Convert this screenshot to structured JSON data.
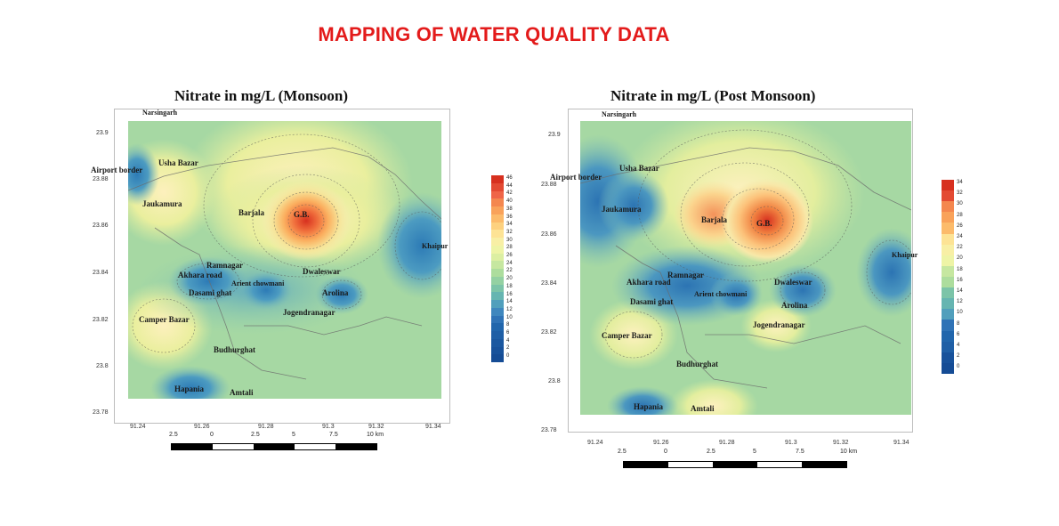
{
  "page": {
    "title": "MAPPING OF WATER QUALITY DATA"
  },
  "maps": [
    {
      "title": "Nitrate in mg/L (Monsoon)",
      "top_label": "Narsingarh",
      "y_ticks": [
        "23.9",
        "23.88",
        "23.86",
        "23.84",
        "23.82",
        "23.8",
        "23.78"
      ],
      "x_ticks": [
        "91.24",
        "91.26",
        "91.28",
        "91.3",
        "91.32",
        "91.34"
      ],
      "legend_ticks": [
        "46",
        "44",
        "42",
        "40",
        "38",
        "36",
        "34",
        "32",
        "30",
        "28",
        "26",
        "24",
        "22",
        "20",
        "18",
        "16",
        "14",
        "12",
        "10",
        "8",
        "6",
        "4",
        "2",
        "0"
      ],
      "scale_labels": [
        "2.5",
        "0",
        "2.5",
        "5",
        "7.5",
        "10 km"
      ],
      "places": [
        "Airport border",
        "Usha Bazar",
        "Jaukamura",
        "Barjala",
        "G.B.",
        "Khaipur",
        "Ramnagar",
        "Akhara road",
        "Dwaleswar",
        "Arient chowmani",
        "Dasami ghat",
        "Arolina",
        "Jogendranagar",
        "Camper Bazar",
        "Budhurghat",
        "Hapania",
        "Amtali"
      ]
    },
    {
      "title": "Nitrate in mg/L (Post Monsoon)",
      "top_label": "Narsingarh",
      "y_ticks": [
        "23.9",
        "23.88",
        "23.86",
        "23.84",
        "23.82",
        "23.8",
        "23.78"
      ],
      "x_ticks": [
        "91.24",
        "91.26",
        "91.28",
        "91.3",
        "91.32",
        "91.34"
      ],
      "legend_ticks": [
        "34",
        "32",
        "30",
        "28",
        "26",
        "24",
        "22",
        "20",
        "18",
        "16",
        "14",
        "12",
        "10",
        "8",
        "6",
        "4",
        "2",
        "0"
      ],
      "scale_labels": [
        "2.5",
        "0",
        "2.5",
        "5",
        "7.5",
        "10 km"
      ],
      "places": [
        "Airport border",
        "Usha Bazar",
        "Jaukamura",
        "Barjala",
        "G.B.",
        "Khaipur",
        "Ramnagar",
        "Akhara road",
        "Dwaleswar",
        "Arient chowmani",
        "Dasami ghat",
        "Arolina",
        "Jogendranagar",
        "Camper Bazar",
        "Budhurghat",
        "Hapania",
        "Amtali"
      ]
    }
  ]
}
